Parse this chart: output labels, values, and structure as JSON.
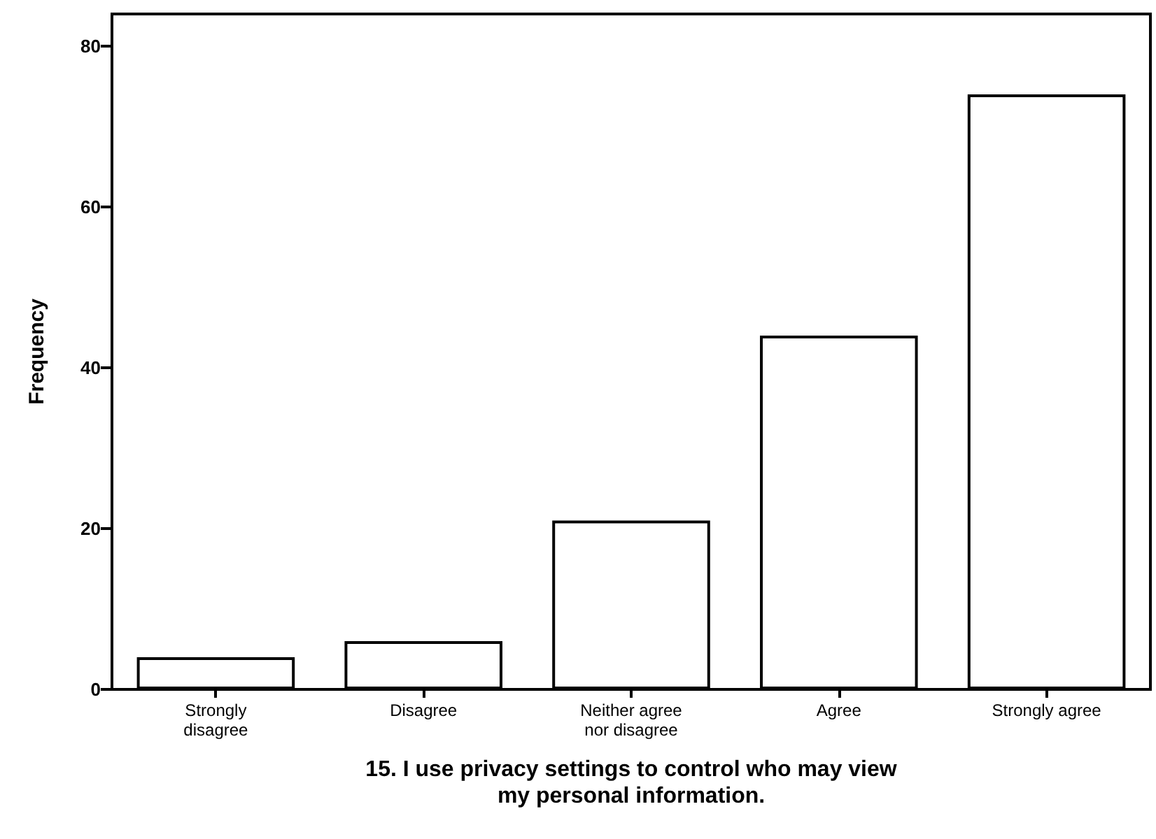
{
  "chart_data": {
    "type": "bar",
    "categories": [
      "Strongly\ndisagree",
      "Disagree",
      "Neither agree\nnor disagree",
      "Agree",
      "Strongly agree"
    ],
    "values": [
      4,
      6,
      21,
      44,
      74
    ],
    "color": "#ffffff",
    "xlabel": "15. I use privacy settings to control who may view\nmy personal information.",
    "ylabel": "Frequency",
    "ylim": [
      0,
      84
    ],
    "yticks": [
      0,
      20,
      40,
      60,
      80
    ],
    "grid": false
  }
}
